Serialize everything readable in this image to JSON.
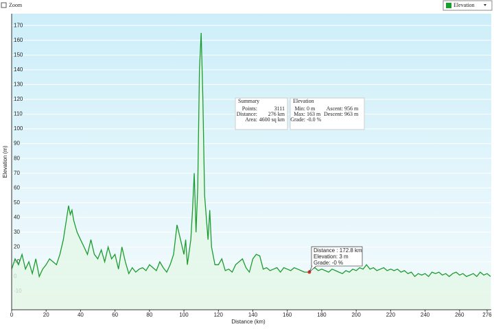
{
  "ui": {
    "zoom_label": "Zoom",
    "series_select": "Elevation"
  },
  "summary": {
    "title": "Summary",
    "rows": [
      [
        "Points:",
        "3111"
      ],
      [
        "Distance:",
        "276 km"
      ],
      [
        "Area:",
        "4600 sq km"
      ]
    ]
  },
  "elevation_stats": {
    "title": "Elevation",
    "rows": [
      [
        "Min:",
        "0 m",
        "Ascent:",
        "956 m"
      ],
      [
        "Max:",
        "163 m",
        "Descent:",
        "963 m"
      ],
      [
        "Grade:",
        "-0.0 %",
        "",
        ""
      ]
    ]
  },
  "tooltip": {
    "lines": [
      "Distance : 172.8 km",
      "Elevation: 3 m",
      "Grade: -0 %"
    ],
    "x": 172.8,
    "y": 3
  },
  "chart_data": {
    "type": "area",
    "x_label": "Distance  (km)",
    "y_label": "Elevation (m)",
    "color": "#1a9c2e",
    "fill": "#e4f7e6",
    "x": [
      0,
      2,
      4,
      6,
      8,
      10,
      12,
      14,
      16,
      18,
      20,
      22,
      24,
      26,
      28,
      30,
      32,
      33,
      34,
      35,
      36,
      38,
      40,
      42,
      44,
      46,
      48,
      50,
      52,
      54,
      56,
      58,
      60,
      62,
      64,
      66,
      68,
      70,
      72,
      74,
      76,
      78,
      80,
      82,
      84,
      86,
      88,
      90,
      92,
      94,
      96,
      98,
      100,
      101,
      102,
      104,
      105,
      106,
      107,
      108,
      109,
      110,
      111,
      112,
      113,
      114,
      115,
      116,
      118,
      120,
      122,
      124,
      126,
      128,
      130,
      132,
      134,
      136,
      138,
      140,
      142,
      144,
      146,
      148,
      150,
      152,
      154,
      156,
      158,
      160,
      162,
      164,
      166,
      168,
      170,
      172,
      174,
      176,
      178,
      180,
      182,
      184,
      186,
      188,
      190,
      192,
      194,
      196,
      198,
      200,
      202,
      204,
      206,
      208,
      210,
      212,
      214,
      216,
      218,
      220,
      222,
      224,
      226,
      228,
      230,
      232,
      234,
      236,
      238,
      240,
      242,
      244,
      246,
      248,
      250,
      252,
      254,
      256,
      258,
      260,
      262,
      264,
      266,
      268,
      270,
      272,
      274,
      276,
      278
    ],
    "y": [
      5,
      12,
      8,
      15,
      5,
      10,
      2,
      12,
      0,
      5,
      8,
      12,
      10,
      8,
      15,
      25,
      40,
      48,
      42,
      45,
      38,
      30,
      25,
      20,
      15,
      25,
      15,
      12,
      18,
      10,
      20,
      12,
      15,
      5,
      20,
      10,
      2,
      6,
      3,
      5,
      6,
      4,
      8,
      6,
      4,
      10,
      6,
      3,
      8,
      15,
      35,
      25,
      15,
      25,
      8,
      25,
      45,
      70,
      30,
      60,
      140,
      165,
      120,
      55,
      40,
      25,
      45,
      20,
      8,
      8,
      12,
      4,
      5,
      3,
      8,
      10,
      12,
      6,
      3,
      12,
      15,
      14,
      5,
      6,
      4,
      5,
      6,
      3,
      6,
      5,
      4,
      6,
      5,
      4,
      3,
      3,
      5,
      6,
      4,
      5,
      4,
      3,
      5,
      4,
      3,
      2,
      4,
      3,
      5,
      4,
      6,
      5,
      8,
      5,
      6,
      4,
      5,
      6,
      4,
      5,
      4,
      5,
      3,
      4,
      2,
      3,
      0,
      2,
      1,
      2,
      0,
      3,
      2,
      3,
      1,
      2,
      0,
      2,
      3,
      1,
      2,
      0,
      1,
      2,
      0,
      3,
      1,
      2,
      0
    ],
    "xlim": [
      0,
      278.4
    ],
    "ylim": [
      -22.5,
      178
    ],
    "xticks": [
      0,
      20,
      40,
      60,
      80,
      100,
      120,
      140,
      160,
      180,
      200,
      220,
      240,
      260,
      276
    ],
    "yticks": [
      -10,
      0,
      10,
      20,
      30,
      40,
      50,
      60,
      70,
      80,
      90,
      100,
      110,
      120,
      130,
      140,
      150,
      160,
      170
    ],
    "grid": true
  }
}
